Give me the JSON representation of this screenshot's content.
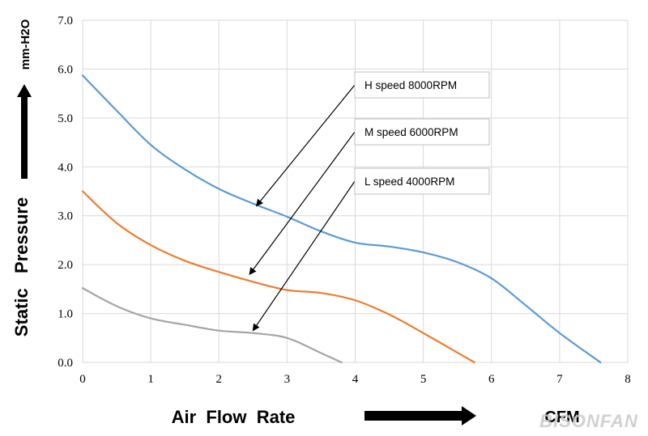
{
  "chart_data": {
    "type": "line",
    "ylabel": "Static   Pressure",
    "yunit": "mm-H2O",
    "xlabel": "Air  Flow  Rate",
    "xunit": "CFM",
    "xlim": [
      0,
      8
    ],
    "ylim": [
      0,
      7
    ],
    "xticks": [
      "0",
      "1",
      "2",
      "3",
      "4",
      "5",
      "6",
      "7",
      "8"
    ],
    "yticks": [
      "0.0",
      "1.0",
      "2.0",
      "3.0",
      "4.0",
      "5.0",
      "6.0",
      "7.0"
    ],
    "grid": true,
    "series": [
      {
        "name": "H speed  8000RPM",
        "color": "#5b9bd5",
        "x": [
          0,
          0.5,
          1,
          1.5,
          2,
          2.5,
          3,
          3.5,
          4,
          4.5,
          5,
          5.5,
          6,
          6.5,
          7,
          7.6
        ],
        "y": [
          5.87,
          5.15,
          4.45,
          3.95,
          3.55,
          3.25,
          2.98,
          2.68,
          2.45,
          2.37,
          2.25,
          2.05,
          1.72,
          1.17,
          0.6,
          0.0
        ]
      },
      {
        "name": "M speed  6000RPM",
        "color": "#ed7d31",
        "x": [
          0,
          0.5,
          1,
          1.5,
          2,
          2.5,
          3,
          3.5,
          4,
          4.5,
          5,
          5.4,
          5.75
        ],
        "y": [
          3.5,
          2.85,
          2.4,
          2.08,
          1.85,
          1.65,
          1.48,
          1.42,
          1.27,
          0.98,
          0.6,
          0.28,
          0.0
        ]
      },
      {
        "name": "L speed  4000RPM",
        "color": "#a5a5a5",
        "x": [
          0,
          0.5,
          1,
          1.5,
          2,
          2.5,
          3,
          3.5,
          3.8
        ],
        "y": [
          1.52,
          1.15,
          0.9,
          0.77,
          0.65,
          0.6,
          0.5,
          0.19,
          0.0
        ]
      }
    ],
    "annotations": [
      {
        "text": "H speed   8000RPM",
        "series": 0,
        "points_to": [
          2.55,
          3.2
        ]
      },
      {
        "text": "M speed  6000RPM",
        "series": 1,
        "points_to": [
          2.45,
          1.8
        ]
      },
      {
        "text": "L speed  4000RPM",
        "series": 2,
        "points_to": [
          2.5,
          0.65
        ]
      }
    ]
  },
  "watermark": "BISONFAN"
}
